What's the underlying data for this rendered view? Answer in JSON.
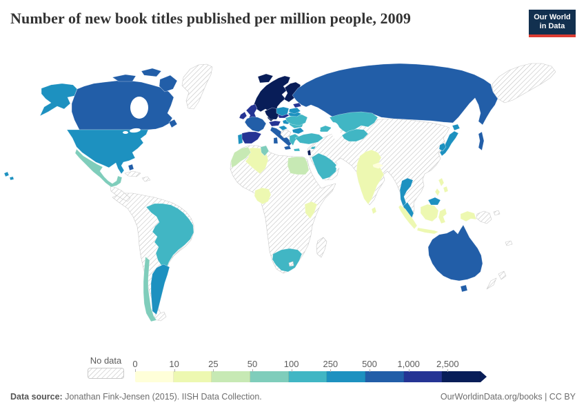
{
  "header": {
    "title": "Number of new book titles published per million people, 2009",
    "logo": {
      "line1": "Our World",
      "line2": "in Data",
      "bg_color": "#12304f",
      "accent_color": "#dc3c32",
      "text_color": "#ffffff"
    }
  },
  "legend": {
    "no_data_label": "No data",
    "tick_labels": [
      "0",
      "10",
      "25",
      "50",
      "100",
      "250",
      "500",
      "1,000",
      "2,500"
    ],
    "colors": [
      "#ffffd9",
      "#edf8b1",
      "#c7e9b4",
      "#7fcdbb",
      "#41b6c4",
      "#1d91c0",
      "#225ea8",
      "#253494",
      "#081d58"
    ]
  },
  "palette": {
    "b0": "#ffffd9",
    "b1": "#edf8b1",
    "b2": "#c7e9b4",
    "b3": "#7fcdbb",
    "b4": "#41b6c4",
    "b5": "#1d91c0",
    "b6": "#225ea8",
    "b7": "#253494",
    "b8": "#081d58"
  },
  "map": {
    "region_stroke": "rgba(255,255,255,0.55)",
    "nodata_stroke": "#c9c9c9",
    "regions": {
      "greenland": "no_data",
      "chukotka": "no_data",
      "asia-other": "no_data",
      "africa-other": "no_data",
      "south-america-other": "no_data",
      "central-america": "no_data",
      "cuba": "no_data",
      "hispaniola": "no_data",
      "madagascar": "no_data",
      "papua-new-guinea": "no_data",
      "new-zealand": "no_data",
      "new-caledonia": "no_data",
      "west-balkans": "no_data",
      "lesotho": "no_data",
      "alaska": "b5",
      "canada": "b6",
      "usa": "b5",
      "hawaii": "b5",
      "bahamas": "b6",
      "mexico": "b3",
      "brazil": "b4",
      "argentina": "b5",
      "chile": "b3",
      "iceland": "b8",
      "scandinavia": "b8",
      "denmark": "b8",
      "uk": "b7",
      "ireland": "b7",
      "portugal": "b5",
      "spain": "b7",
      "france": "b6",
      "germany": "b8",
      "alpine": "b7",
      "czech-slovakia": "b7",
      "poland": "b5",
      "italy": "b6",
      "croatia": "b5",
      "hungary": "b5",
      "romania": "b4",
      "bulgaria": "b5",
      "greece": "b4",
      "ukraine": "b4",
      "belarus": "b5",
      "baltics": "b5",
      "estonia": "b7",
      "russia": "b6",
      "turkey": "b4",
      "cyprus": "b4",
      "caucasus": "b4",
      "kazakhstan": "b4",
      "central-asia": "b4",
      "israel": "b8",
      "saudi-arabia": "b4",
      "india": "b1",
      "nepal": "b0",
      "sri-lanka": "b1",
      "thailand": "b5",
      "malaysia": "b5",
      "indonesia": "b1",
      "philippines": "b1",
      "japan": "b5",
      "south-korea": "b5",
      "australia": "b6",
      "morocco": "b2",
      "algeria": "b1",
      "tunisia": "b3",
      "egypt": "b2",
      "nigeria": "b1",
      "kenya": "b1",
      "south-africa": "b4"
    }
  },
  "footer": {
    "source_prefix": "Data source:",
    "source_rest": " Jonathan Fink-Jensen (2015). IISH Data Collection.",
    "credit": "OurWorldinData.org/books | CC BY"
  }
}
